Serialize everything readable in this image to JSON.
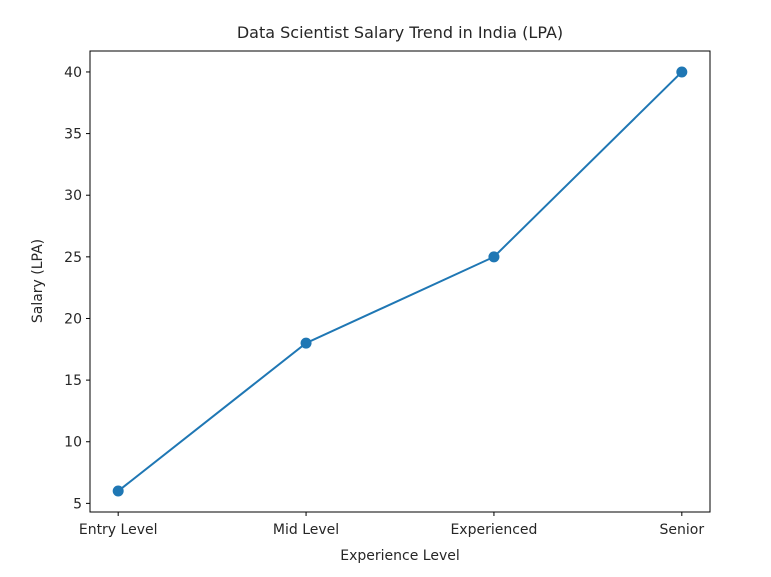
{
  "chart_data": {
    "type": "line",
    "title": "Data Scientist Salary Trend in India (LPA)",
    "xlabel": "Experience Level",
    "ylabel": "Salary (LPA)",
    "categories": [
      "Entry Level",
      "Mid Level",
      "Experienced",
      "Senior"
    ],
    "values": [
      6,
      18,
      25,
      40
    ],
    "yticks": [
      5,
      10,
      15,
      20,
      25,
      30,
      35,
      40
    ],
    "ylim": [
      4.3,
      41.7
    ],
    "grid": false,
    "marker": "circle",
    "color": "#1f77b4"
  }
}
